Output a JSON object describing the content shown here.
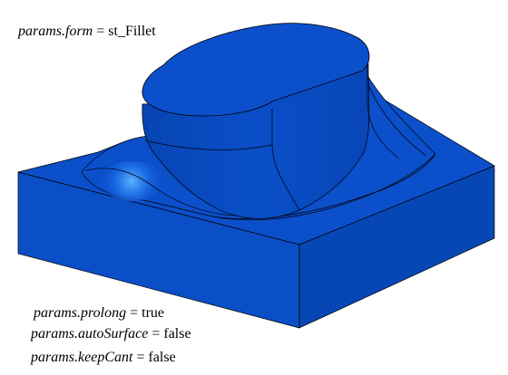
{
  "params": [
    {
      "key": "form",
      "variable": "params.form",
      "value": "st_Fillet"
    },
    {
      "key": "prolong",
      "variable": "params.prolong",
      "value": "true"
    },
    {
      "key": "autoSurface",
      "variable": "params.autoSurface",
      "value": "false"
    },
    {
      "key": "keepCant",
      "variable": "params.keepCant",
      "value": "false"
    }
  ],
  "colors": {
    "surface_top": "#0b4fcb",
    "surface_side": "#0747b5",
    "surface_front": "#0a4fc6",
    "highlight": "#4aa8ff",
    "edge": "#000000"
  }
}
